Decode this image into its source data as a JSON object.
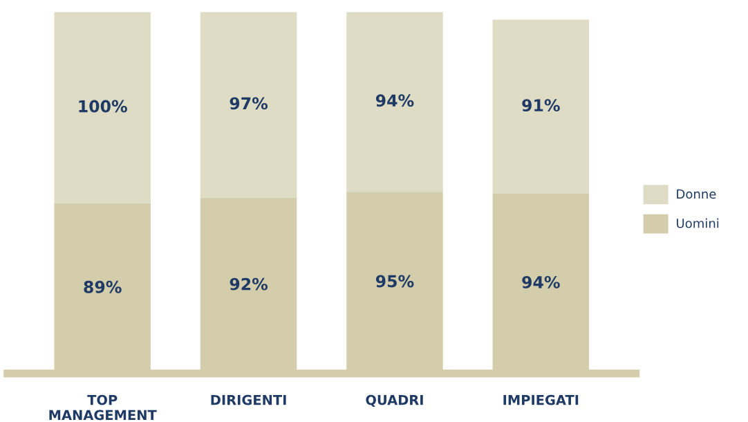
{
  "chart_data": {
    "type": "bar",
    "stacked": true,
    "legend": "right",
    "grid": false,
    "categories": [
      "TOP\nMANAGEMENT",
      "DIRIGENTI",
      "QUADRI",
      "IMPIEGATI"
    ],
    "series": [
      {
        "name": "Uomini",
        "color": "#d3cdab",
        "values": [
          89,
          92,
          95,
          94
        ],
        "value_labels": [
          "89%",
          "92%",
          "95%",
          "94%"
        ]
      },
      {
        "name": "Donne",
        "color": "#dfdcc5",
        "values": [
          100,
          97,
          94,
          91
        ],
        "value_labels": [
          "100%",
          "97%",
          "94%",
          "91%"
        ]
      }
    ]
  }
}
